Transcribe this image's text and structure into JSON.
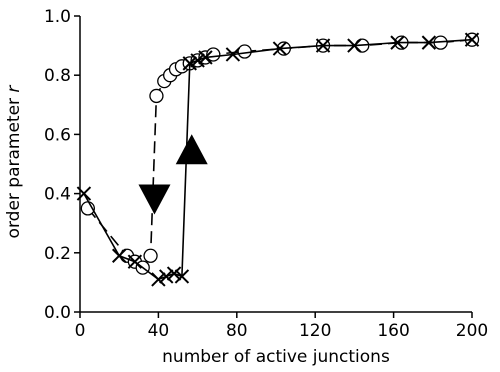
{
  "chart_data": {
    "type": "line",
    "title": "",
    "xlabel": "number of active junctions",
    "ylabel_prefix": "order parameter ",
    "ylabel_var": "r",
    "xlim": [
      0,
      200
    ],
    "ylim": [
      0.0,
      1.0
    ],
    "x_ticks": [
      0,
      40,
      80,
      120,
      160,
      200
    ],
    "y_ticks": [
      0.0,
      0.2,
      0.4,
      0.6,
      0.8,
      1.0
    ],
    "x_tick_labels": [
      "0",
      "40",
      "80",
      "120",
      "160",
      "200"
    ],
    "y_tick_labels": [
      "0.0",
      "0.2",
      "0.4",
      "0.6",
      "0.8",
      "1.0"
    ],
    "legend": false,
    "grid": false,
    "series": [
      {
        "marker": "circle",
        "line_style": "dashed",
        "points": [
          [
            4,
            0.35
          ],
          [
            24,
            0.19
          ],
          [
            28,
            0.17
          ],
          [
            32,
            0.15
          ],
          [
            36,
            0.19
          ],
          [
            39,
            0.73
          ],
          [
            43,
            0.78
          ],
          [
            46,
            0.8
          ],
          [
            49,
            0.82
          ],
          [
            52,
            0.83
          ],
          [
            56,
            0.84
          ],
          [
            60,
            0.85
          ],
          [
            64,
            0.86
          ],
          [
            68,
            0.87
          ],
          [
            84,
            0.88
          ],
          [
            104,
            0.89
          ],
          [
            124,
            0.9
          ],
          [
            144,
            0.9
          ],
          [
            164,
            0.91
          ],
          [
            184,
            0.91
          ],
          [
            200,
            0.92
          ]
        ]
      },
      {
        "marker": "x",
        "line_style": "solid",
        "points": [
          [
            2,
            0.4
          ],
          [
            20,
            0.19
          ],
          [
            28,
            0.17
          ],
          [
            40,
            0.11
          ],
          [
            44,
            0.12
          ],
          [
            48,
            0.13
          ],
          [
            52,
            0.12
          ],
          [
            56,
            0.84
          ],
          [
            60,
            0.85
          ],
          [
            64,
            0.86
          ],
          [
            78,
            0.87
          ],
          [
            102,
            0.89
          ],
          [
            124,
            0.9
          ],
          [
            140,
            0.9
          ],
          [
            162,
            0.91
          ],
          [
            178,
            0.91
          ],
          [
            200,
            0.92
          ]
        ]
      }
    ],
    "annotations": [
      {
        "type": "arrow",
        "direction": "down",
        "x": 38,
        "y": 0.38
      },
      {
        "type": "arrow",
        "direction": "up",
        "x": 57,
        "y": 0.55
      }
    ]
  }
}
